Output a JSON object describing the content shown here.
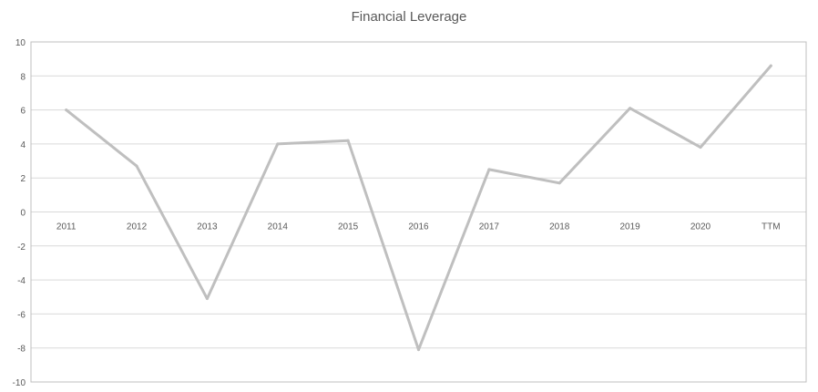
{
  "chart_data": {
    "type": "line",
    "title": "Financial Leverage",
    "xlabel": "",
    "ylabel": "",
    "categories": [
      "2011",
      "2012",
      "2013",
      "2014",
      "2015",
      "2016",
      "2017",
      "2018",
      "2019",
      "2020",
      "TTM"
    ],
    "series": [
      {
        "values": [
          6.0,
          2.7,
          -5.1,
          4.0,
          4.2,
          -8.1,
          2.5,
          1.7,
          6.1,
          3.8,
          8.6
        ]
      }
    ],
    "ylim": [
      -10,
      10
    ],
    "yticks": [
      "-10",
      "-8",
      "-6",
      "-4",
      "-2",
      "0",
      "2",
      "4",
      "6",
      "8",
      "10"
    ],
    "grid": true,
    "legend": "none",
    "colors": {
      "line": "#bfbfbf",
      "grid": "#d9d9d9",
      "axis_text": "#595959",
      "border": "#bfbfbf"
    }
  }
}
